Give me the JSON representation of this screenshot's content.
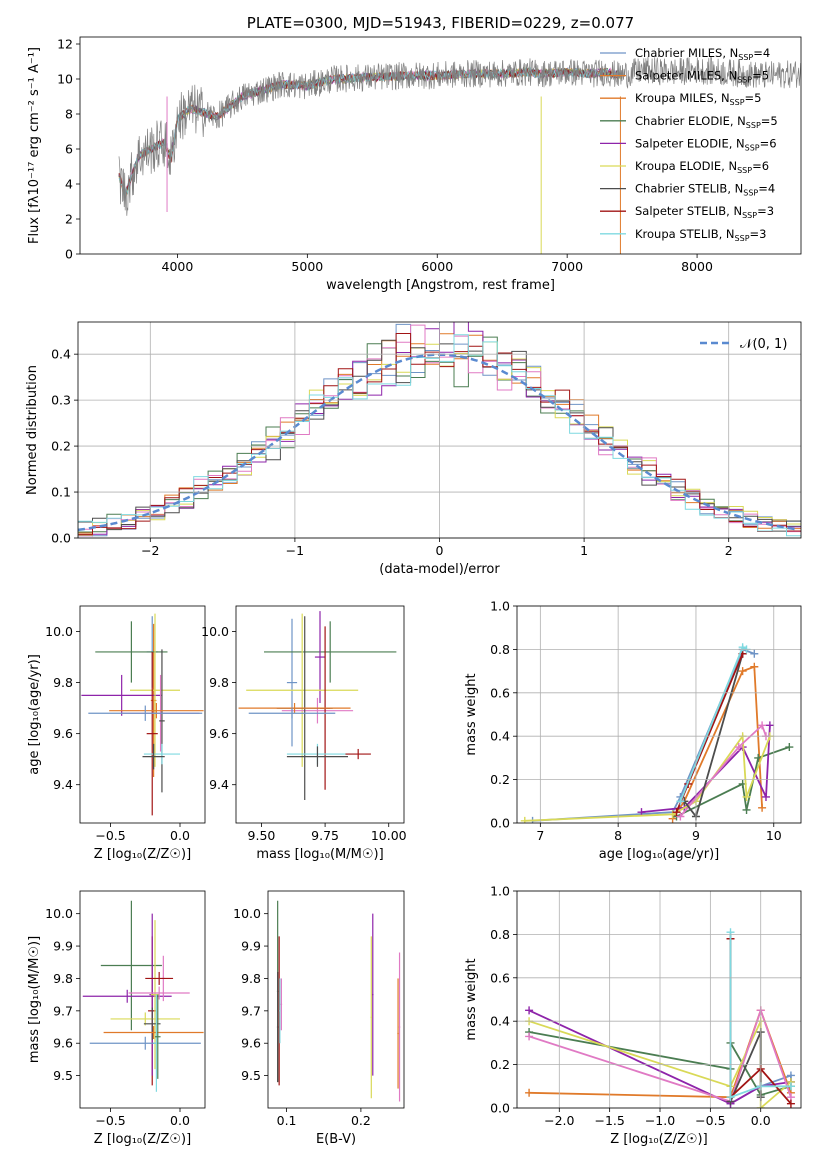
{
  "colors": [
    "#6f94c6",
    "#e07a2a",
    "#4b7d52",
    "#8e24aa",
    "#d9d957",
    "#e07ac4",
    "#4d4d4d",
    "#a11414",
    "#7fd9e0",
    "#808080"
  ],
  "chart_data": [
    {
      "id": "spectrum",
      "type": "line",
      "title": "PLATE=0300, MJD=51943, FIBERID=0229, z=0.077",
      "xlabel": "wavelength [Angstrom, rest frame]",
      "ylabel": "Flux [fλ10⁻¹⁷ erg cm⁻² s⁻¹ A⁻¹]",
      "xlim": [
        3250,
        8800
      ],
      "ylim": [
        0,
        12.4
      ],
      "xticks": [
        4000,
        5000,
        6000,
        7000,
        8000
      ],
      "yticks": [
        0,
        2,
        4,
        6,
        8,
        10,
        12
      ],
      "grid": false,
      "legend_position": "top-right",
      "data_color": "#808080",
      "data_x": [
        3550,
        3600,
        3700,
        3800,
        3900,
        3950,
        4000,
        4100,
        4200,
        4300,
        4500,
        4800,
        5000,
        5200,
        5500,
        5800,
        6000,
        6300,
        6500,
        6700,
        6800,
        7000,
        7200,
        7300,
        7400,
        7600,
        7800,
        8000,
        8200,
        8500,
        8800
      ],
      "data_y": [
        4.5,
        3.4,
        5.6,
        6.0,
        6.4,
        5.4,
        7.7,
        8.3,
        8.1,
        7.8,
        9.0,
        9.7,
        9.6,
        10.0,
        10.1,
        10.2,
        10.2,
        10.3,
        10.3,
        10.4,
        10.3,
        10.4,
        10.3,
        10.4,
        10.2,
        10.5,
        10.4,
        10.5,
        10.4,
        10.2,
        10.3
      ],
      "legend": [
        {
          "label": "Chabrier MILES, N",
          "sub": "SSP",
          "suffix": "=4",
          "color": "#6f94c6"
        },
        {
          "label": "Salpeter MILES, N",
          "sub": "SSP",
          "suffix": "=5",
          "color": "#e07a2a"
        },
        {
          "label": "Kroupa MILES, N",
          "sub": "SSP",
          "suffix": "=5",
          "color": "#e07a2a"
        },
        {
          "label": "Chabrier ELODIE, N",
          "sub": "SSP",
          "suffix": "=5",
          "color": "#4b7d52"
        },
        {
          "label": "Salpeter ELODIE, N",
          "sub": "SSP",
          "suffix": "=6",
          "color": "#8e24aa"
        },
        {
          "label": "Kroupa ELODIE, N",
          "sub": "SSP",
          "suffix": "=6",
          "color": "#d9d957"
        },
        {
          "label": "Chabrier STELIB, N",
          "sub": "SSP",
          "suffix": "=4",
          "color": "#4d4d4d"
        },
        {
          "label": "Salpeter STELIB, N",
          "sub": "SSP",
          "suffix": "=3",
          "color": "#a11414"
        },
        {
          "label": "Kroupa STELIB, N",
          "sub": "SSP",
          "suffix": "=3",
          "color": "#7fd9e0"
        }
      ]
    },
    {
      "id": "residuals",
      "type": "line",
      "xlabel": "(data-model)/error",
      "ylabel": "Normed distribution",
      "xlim": [
        -2.5,
        2.5
      ],
      "ylim": [
        0,
        0.47
      ],
      "xticks": [
        -2,
        -1,
        0,
        1,
        2
      ],
      "yticks": [
        0.0,
        0.1,
        0.2,
        0.3,
        0.4
      ],
      "grid": true,
      "legend_position": "top-right",
      "gaussian_label": "𝒩(0, 1)",
      "gaussian_color": "#5a8ad0",
      "bin_width": 0.1
    },
    {
      "id": "age_vs_Z",
      "type": "scatter",
      "xlabel": "Z [log₁₀(Z/Z☉)]",
      "ylabel": "age  [log₁₀(age/yr)]",
      "xlim": [
        -0.72,
        0.18
      ],
      "ylim": [
        9.25,
        10.1
      ],
      "xticks": [
        -0.5,
        0.0
      ],
      "yticks": [
        9.4,
        9.6,
        9.8,
        10.0
      ],
      "points": [
        {
          "x": -0.19,
          "y": 9.73,
          "ex": 0.02,
          "ey": 0.3,
          "c": 1
        },
        {
          "x": -0.2,
          "y": 9.92,
          "ex": 0.04,
          "ey": 0.14,
          "c": 0
        },
        {
          "x": -0.35,
          "y": 9.92,
          "ex": 0.26,
          "ey": 0.12,
          "c": 2
        },
        {
          "x": -0.42,
          "y": 9.75,
          "ex": 0.29,
          "ey": 0.08,
          "c": 3
        },
        {
          "x": -0.18,
          "y": 9.77,
          "ex": 0.18,
          "ey": 0.3,
          "c": 4
        },
        {
          "x": -0.14,
          "y": 9.68,
          "ex": 0.28,
          "ey": 0.15,
          "c": 5
        },
        {
          "x": -0.13,
          "y": 9.65,
          "ex": 0.02,
          "ey": 0.28,
          "c": 6
        },
        {
          "x": -0.2,
          "y": 9.6,
          "ex": 0.04,
          "ey": 0.32,
          "c": 7
        },
        {
          "x": -0.13,
          "y": 9.52,
          "ex": 0.13,
          "ey": 0.04,
          "c": 8
        },
        {
          "x": -0.19,
          "y": 9.51,
          "ex": 0.08,
          "ey": 0.05,
          "c": 6
        },
        {
          "x": -0.17,
          "y": 9.69,
          "ex": 0.34,
          "ey": 0.03,
          "c": 1
        },
        {
          "x": -0.25,
          "y": 9.68,
          "ex": 0.41,
          "ey": 0.03,
          "c": 0
        }
      ]
    },
    {
      "id": "age_vs_mass",
      "type": "scatter",
      "xlabel": "mass [log₁₀(M/M☉)]",
      "ylabel": "",
      "xlim": [
        9.4,
        10.06
      ],
      "ylim": [
        9.25,
        10.1
      ],
      "xticks": [
        9.5,
        9.75,
        10.0
      ],
      "yticks": [
        9.4,
        9.6,
        9.8,
        10.0
      ],
      "points": [
        {
          "x": 9.62,
          "y": 9.8,
          "ex": 0.02,
          "ey": 0.25,
          "c": 0
        },
        {
          "x": 9.77,
          "y": 9.92,
          "ex": 0.26,
          "ey": 0.12,
          "c": 2
        },
        {
          "x": 9.73,
          "y": 9.9,
          "ex": 0.02,
          "ey": 0.18,
          "c": 3
        },
        {
          "x": 9.66,
          "y": 9.77,
          "ex": 0.22,
          "ey": 0.3,
          "c": 4
        },
        {
          "x": 9.72,
          "y": 9.69,
          "ex": 0.14,
          "ey": 0.05,
          "c": 5
        },
        {
          "x": 9.67,
          "y": 9.7,
          "ex": 0.11,
          "ey": 0.36,
          "c": 6
        },
        {
          "x": 9.75,
          "y": 9.7,
          "ex": 0.02,
          "ey": 0.32,
          "c": 7
        },
        {
          "x": 9.72,
          "y": 9.52,
          "ex": 0.12,
          "ey": 0.04,
          "c": 8
        },
        {
          "x": 9.72,
          "y": 9.51,
          "ex": 0.12,
          "ey": 0.04,
          "c": 6
        },
        {
          "x": 9.63,
          "y": 9.7,
          "ex": 0.22,
          "ey": 0.02,
          "c": 1
        },
        {
          "x": 9.62,
          "y": 9.68,
          "ex": 0.17,
          "ey": 0.02,
          "c": 0
        },
        {
          "x": 9.88,
          "y": 9.52,
          "ex": 0.05,
          "ey": 0.02,
          "c": 7
        }
      ]
    },
    {
      "id": "weight_vs_age",
      "type": "line",
      "xlabel": "age  [log₁₀(age/yr)]",
      "ylabel": "mass weight",
      "xlim": [
        6.7,
        10.35
      ],
      "ylim": [
        0,
        1
      ],
      "xticks": [
        7,
        8,
        9,
        10
      ],
      "yticks": [
        0.0,
        0.2,
        0.4,
        0.6,
        0.8,
        1.0
      ],
      "grid": true,
      "series": [
        {
          "c": 0,
          "x": [
            6.9,
            8.7,
            8.8,
            9.6,
            9.75
          ],
          "y": [
            0.01,
            0.05,
            0.12,
            0.8,
            0.78
          ]
        },
        {
          "c": 1,
          "x": [
            8.7,
            8.85,
            9.6,
            9.75,
            9.85
          ],
          "y": [
            0.02,
            0.1,
            0.7,
            0.72,
            0.07
          ]
        },
        {
          "c": 2,
          "x": [
            8.75,
            9.6,
            9.65,
            9.8,
            10.2
          ],
          "y": [
            0.03,
            0.18,
            0.06,
            0.3,
            0.35
          ]
        },
        {
          "c": 3,
          "x": [
            8.3,
            8.85,
            9.6,
            9.9,
            9.95
          ],
          "y": [
            0.05,
            0.07,
            0.35,
            0.12,
            0.45
          ]
        },
        {
          "c": 4,
          "x": [
            6.8,
            8.7,
            9.0,
            9.6,
            9.65,
            9.95
          ],
          "y": [
            0.01,
            0.04,
            0.1,
            0.4,
            0.12,
            0.4
          ]
        },
        {
          "c": 5,
          "x": [
            8.8,
            9.55,
            9.85,
            9.9
          ],
          "y": [
            0.03,
            0.35,
            0.45,
            0.4
          ]
        },
        {
          "c": 6,
          "x": [
            8.85,
            9.0,
            9.6
          ],
          "y": [
            0.1,
            0.03,
            0.78
          ]
        },
        {
          "c": 7,
          "x": [
            8.75,
            8.9,
            9.6
          ],
          "y": [
            0.05,
            0.18,
            0.78
          ]
        },
        {
          "c": 8,
          "x": [
            8.8,
            9.6,
            9.65
          ],
          "y": [
            0.1,
            0.81,
            0.8
          ]
        }
      ]
    },
    {
      "id": "mass_vs_Z",
      "type": "scatter",
      "xlabel": "Z [log₁₀(Z/Z☉)]",
      "ylabel": "mass [log₁₀(M/M☉)]",
      "xlim": [
        -0.72,
        0.18
      ],
      "ylim": [
        9.4,
        10.07
      ],
      "xticks": [
        -0.5,
        0.0
      ],
      "yticks": [
        9.5,
        9.6,
        9.7,
        9.8,
        9.9,
        10.0
      ],
      "points": [
        {
          "x": -0.2,
          "y": 9.7,
          "ex": 0.03,
          "ey": 0.23,
          "c": 7
        },
        {
          "x": -0.35,
          "y": 9.84,
          "ex": 0.22,
          "ey": 0.2,
          "c": 2
        },
        {
          "x": -0.38,
          "y": 9.745,
          "ex": 0.32,
          "ey": 0.02,
          "c": 3
        },
        {
          "x": -0.2,
          "y": 9.75,
          "ex": 0.02,
          "ey": 0.25,
          "c": 3
        },
        {
          "x": -0.25,
          "y": 9.675,
          "ex": 0.25,
          "ey": 0.02,
          "c": 4
        },
        {
          "x": -0.18,
          "y": 9.75,
          "ex": 0.03,
          "ey": 0.23,
          "c": 4
        },
        {
          "x": -0.15,
          "y": 9.755,
          "ex": 0.22,
          "ey": 0.02,
          "c": 5
        },
        {
          "x": -0.12,
          "y": 9.8,
          "ex": 0.01,
          "ey": 0.07,
          "c": 5
        },
        {
          "x": -0.15,
          "y": 9.8,
          "ex": 0.1,
          "ey": 0.02,
          "c": 7
        },
        {
          "x": -0.2,
          "y": 9.66,
          "ex": 0.06,
          "ey": 0.05,
          "c": 6
        },
        {
          "x": -0.19,
          "y": 9.633,
          "ex": 0.36,
          "ey": 0.02,
          "c": 1
        },
        {
          "x": -0.25,
          "y": 9.6,
          "ex": 0.4,
          "ey": 0.02,
          "c": 0
        },
        {
          "x": -0.17,
          "y": 9.6,
          "ex": 0.02,
          "ey": 0.15,
          "c": 8
        },
        {
          "x": -0.16,
          "y": 9.62,
          "ex": 0.02,
          "ey": 0.13,
          "c": 2
        }
      ]
    },
    {
      "id": "mass_vs_EBV",
      "type": "scatter",
      "xlabel": "E(B-V)",
      "ylabel": "",
      "xlim": [
        0.075,
        0.258
      ],
      "ylim": [
        9.4,
        10.07
      ],
      "xticks": [
        0.1,
        0.2
      ],
      "yticks": [
        9.5,
        9.6,
        9.7,
        9.8,
        9.9,
        10.0
      ],
      "points": [
        {
          "x": 0.088,
          "y": 9.76,
          "ex": 0.001,
          "ey": 0.28,
          "c": 2
        },
        {
          "x": 0.09,
          "y": 9.7,
          "ex": 0.001,
          "ey": 0.23,
          "c": 7
        },
        {
          "x": 0.088,
          "y": 9.65,
          "ex": 0.001,
          "ey": 0.17,
          "c": 6
        },
        {
          "x": 0.091,
          "y": 9.7,
          "ex": 0.001,
          "ey": 0.1,
          "c": 8
        },
        {
          "x": 0.093,
          "y": 9.72,
          "ex": 0.001,
          "ey": 0.08,
          "c": 5
        },
        {
          "x": 0.216,
          "y": 9.75,
          "ex": 0.001,
          "ey": 0.25,
          "c": 3
        },
        {
          "x": 0.214,
          "y": 9.68,
          "ex": 0.001,
          "ey": 0.25,
          "c": 4
        },
        {
          "x": 0.252,
          "y": 9.65,
          "ex": 0.001,
          "ey": 0.23,
          "c": 5
        },
        {
          "x": 0.25,
          "y": 9.63,
          "ex": 0.001,
          "ey": 0.17,
          "c": 1
        }
      ]
    },
    {
      "id": "weight_vs_Z",
      "type": "line",
      "xlabel": "Z [log₁₀(Z/Z☉)]",
      "ylabel": "mass weight",
      "xlim": [
        -2.42,
        0.4
      ],
      "ylim": [
        0,
        1
      ],
      "xticks": [
        -2.0,
        -1.5,
        -1.0,
        -0.5,
        0.0
      ],
      "yticks": [
        0.0,
        0.2,
        0.4,
        0.6,
        0.8,
        1.0
      ],
      "grid": true,
      "series": [
        {
          "c": 0,
          "x": [
            -0.3,
            -0.3,
            0.0,
            0.3,
            0.3
          ],
          "y": [
            0.78,
            0.02,
            0.1,
            0.15,
            0.12
          ]
        },
        {
          "c": 1,
          "x": [
            -2.3,
            -0.3,
            0.0,
            0.3
          ],
          "y": [
            0.07,
            0.05,
            0.45,
            0.07
          ]
        },
        {
          "c": 2,
          "x": [
            -2.3,
            -0.3,
            -0.3,
            0.0,
            0.3
          ],
          "y": [
            0.35,
            0.18,
            0.3,
            0.06,
            0.1
          ]
        },
        {
          "c": 3,
          "x": [
            -2.3,
            -0.3,
            0.0,
            0.3
          ],
          "y": [
            0.45,
            0.02,
            0.1,
            0.12
          ]
        },
        {
          "c": 4,
          "x": [
            -2.3,
            -0.3,
            0.0,
            0.0,
            0.3
          ],
          "y": [
            0.4,
            0.1,
            0.4,
            0.0,
            0.12
          ]
        },
        {
          "c": 5,
          "x": [
            -2.3,
            -0.3,
            0.0,
            0.3
          ],
          "y": [
            0.33,
            0.03,
            0.45,
            0.05
          ]
        },
        {
          "c": 6,
          "x": [
            -0.3,
            -0.3,
            0.0,
            0.0
          ],
          "y": [
            0.78,
            0.03,
            0.35,
            0.05
          ]
        },
        {
          "c": 7,
          "x": [
            -0.3,
            -0.3,
            0.0,
            0.3
          ],
          "y": [
            0.78,
            0.05,
            0.18,
            0.02
          ]
        },
        {
          "c": 8,
          "x": [
            -0.3,
            -0.3,
            0.0,
            0.3
          ],
          "y": [
            0.81,
            0.05,
            0.1,
            0.1
          ]
        }
      ]
    }
  ]
}
